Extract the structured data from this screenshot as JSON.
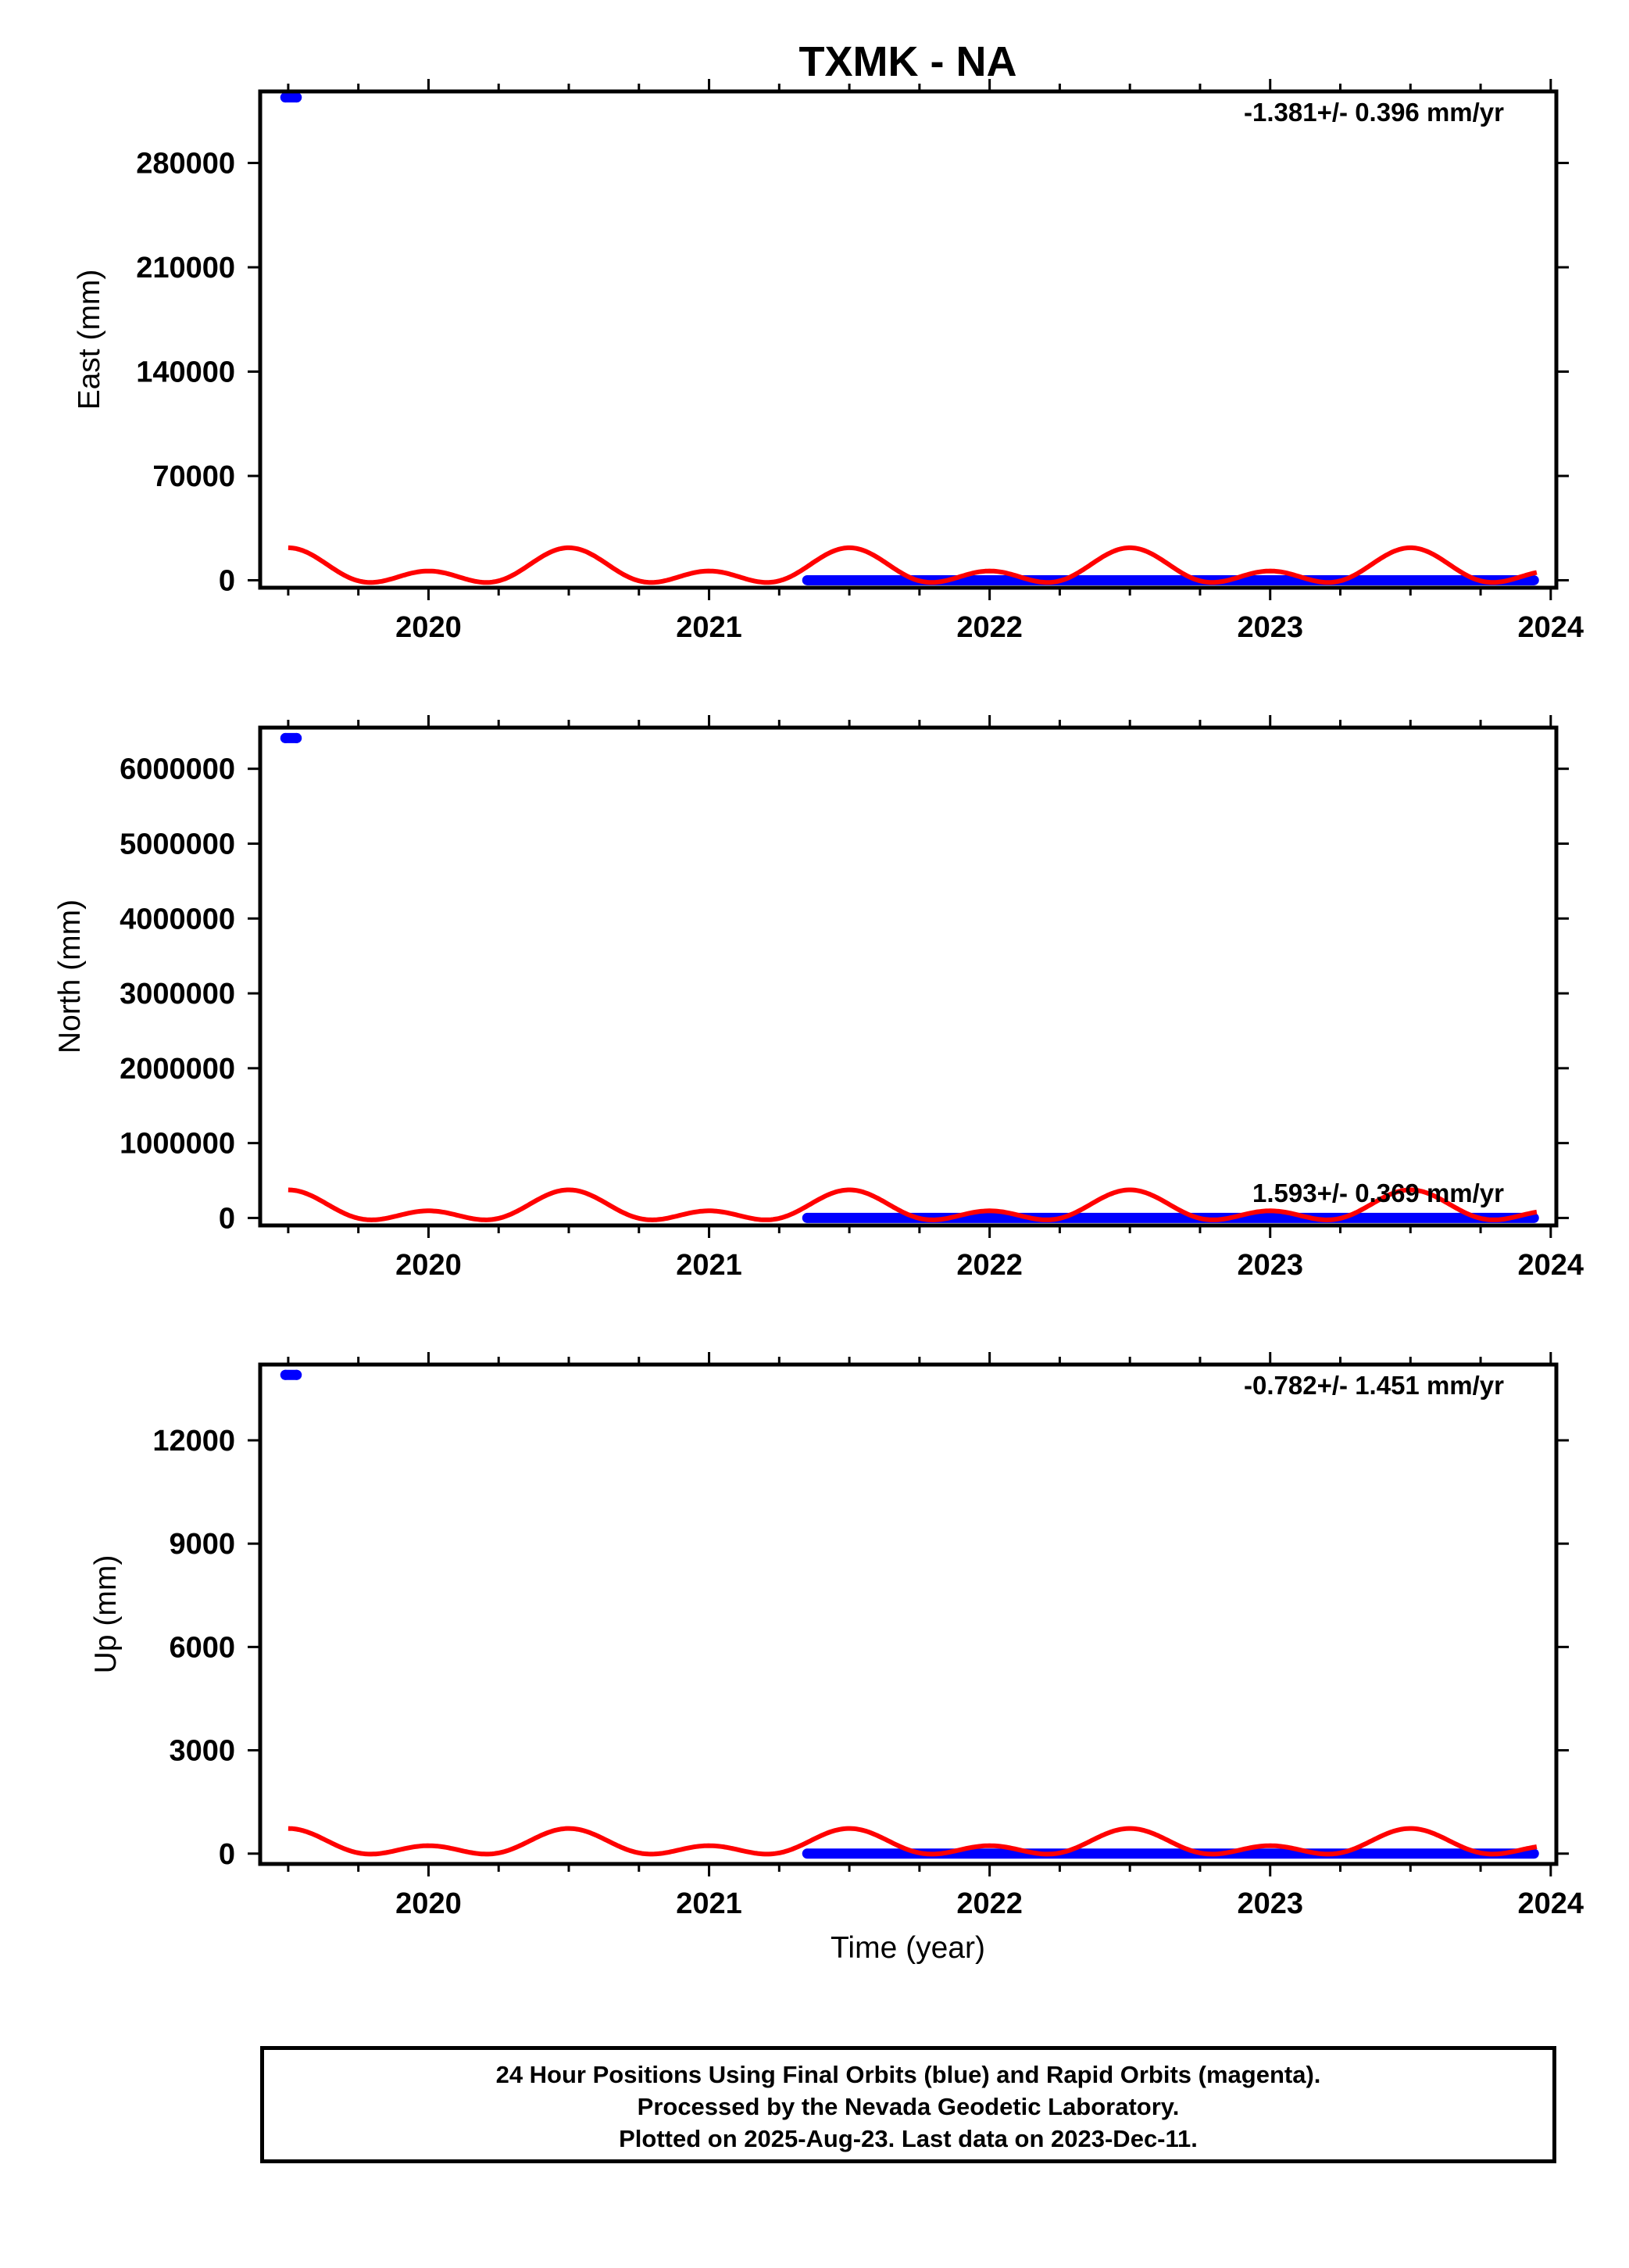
{
  "figure": {
    "title": "TXMK - NA",
    "xlabel": "Time (year)",
    "footer": [
      "24 Hour Positions Using Final Orbits (blue) and Rapid Orbits (magenta).",
      "Processed by the Nevada Geodetic Laboratory.",
      "Plotted on 2025-Aug-23. Last data on 2023-Dec-11."
    ],
    "colors": {
      "final_orbits": "#0000ff",
      "fit": "#ff0000",
      "frame": "#000000"
    }
  },
  "chart_data": [
    {
      "type": "scatter",
      "panel": "east",
      "ylabel": "East (mm)",
      "annotation": "-1.381+/- 0.396 mm/yr",
      "annotation_position": "top-right",
      "xlim": [
        2019.4,
        2024.02
      ],
      "ylim": [
        -5000,
        328000
      ],
      "xticks": [
        2020,
        2021,
        2022,
        2023,
        2024
      ],
      "yticks": [
        0,
        70000,
        140000,
        210000,
        280000
      ],
      "ytick_labels": [
        "0",
        "70000",
        "140000",
        "210000",
        "280000"
      ],
      "outlier_points": {
        "x": [
          2019.49,
          2019.53
        ],
        "y": [
          324000,
          324000
        ]
      },
      "series_points": {
        "x_start": 2021.35,
        "x_end": 2023.94,
        "y": 0
      },
      "fit_curve": {
        "x_start": 2019.5,
        "x_end": 2023.95,
        "offset": 6800,
        "annual_amp": 7800,
        "semiannual_amp": 7200,
        "phase_year": 0.5
      }
    },
    {
      "type": "scatter",
      "panel": "north",
      "ylabel": "North (mm)",
      "annotation": "1.593+/- 0.369 mm/yr",
      "annotation_position": "bottom-right",
      "xlim": [
        2019.4,
        2024.02
      ],
      "ylim": [
        -100000,
        6550000
      ],
      "xticks": [
        2020,
        2021,
        2022,
        2023,
        2024
      ],
      "yticks": [
        0,
        1000000,
        2000000,
        3000000,
        4000000,
        5000000,
        6000000
      ],
      "ytick_labels": [
        "0",
        "1000000",
        "2000000",
        "3000000",
        "4000000",
        "5000000",
        "6000000"
      ],
      "outlier_points": {
        "x": [
          2019.49,
          2019.53
        ],
        "y": [
          6410000,
          6410000
        ]
      },
      "series_points": {
        "x_start": 2021.35,
        "x_end": 2023.94,
        "y": 0
      },
      "fit_curve": {
        "x_start": 2019.5,
        "x_end": 2023.95,
        "offset": 115000,
        "annual_amp": 140000,
        "semiannual_amp": 120000,
        "phase_year": 0.5
      }
    },
    {
      "type": "scatter",
      "panel": "up",
      "ylabel": "Up (mm)",
      "annotation": "-0.782+/- 1.451 mm/yr",
      "annotation_position": "top-right",
      "xlim": [
        2019.4,
        2024.02
      ],
      "ylim": [
        -300,
        14200
      ],
      "xticks": [
        2020,
        2021,
        2022,
        2023,
        2024
      ],
      "yticks": [
        0,
        3000,
        6000,
        9000,
        12000
      ],
      "ytick_labels": [
        "0",
        "3000",
        "6000",
        "9000",
        "12000"
      ],
      "outlier_points": {
        "x": [
          2019.49,
          2019.53
        ],
        "y": [
          13900,
          13900
        ]
      },
      "series_points": {
        "x_start": 2021.35,
        "x_end": 2023.94,
        "y": 0
      },
      "fit_curve": {
        "x_start": 2019.5,
        "x_end": 2023.95,
        "offset": 250,
        "annual_amp": 250,
        "semiannual_amp": 230,
        "phase_year": 0.5
      }
    }
  ]
}
